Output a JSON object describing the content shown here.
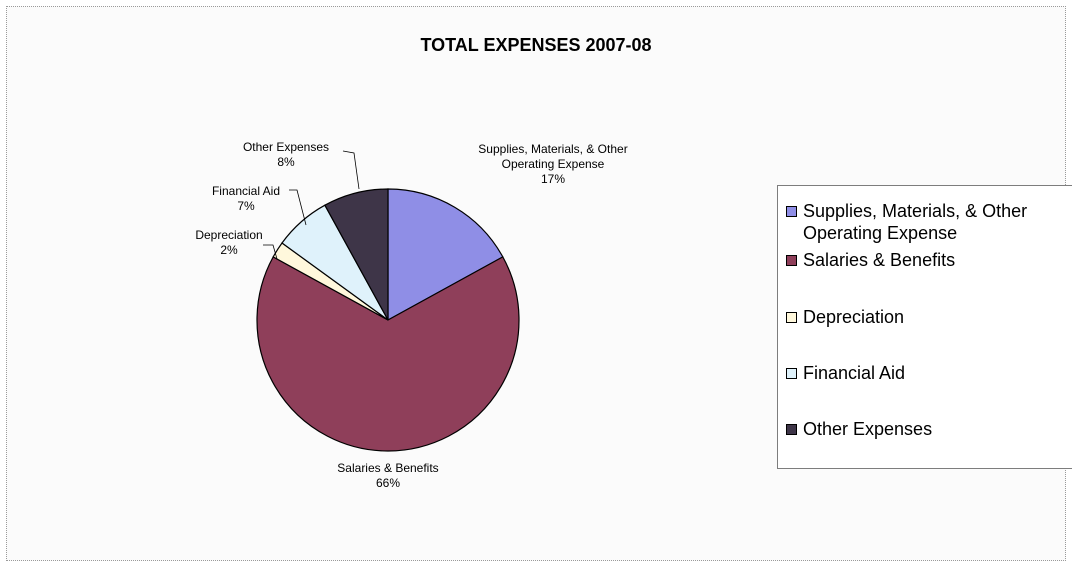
{
  "chart_data": {
    "type": "pie",
    "title": "TOTAL EXPENSES 2007-08",
    "slices": [
      {
        "label": "Supplies, Materials, & Other Operating Expense",
        "label_lines": [
          "Supplies, Materials, & Other",
          "Operating Expense"
        ],
        "value": 17,
        "value_label": "17%",
        "color": "#8f8ee6"
      },
      {
        "label": "Salaries & Benefits",
        "label_lines": [
          "Salaries & Benefits"
        ],
        "value": 66,
        "value_label": "66%",
        "color": "#8f3f5a"
      },
      {
        "label": "Depreciation",
        "label_lines": [
          "Depreciation"
        ],
        "value": 2,
        "value_label": "2%",
        "color": "#fff8dc"
      },
      {
        "label": "Financial Aid",
        "label_lines": [
          "Financial Aid"
        ],
        "value": 7,
        "value_label": "7%",
        "color": "#dff2fb"
      },
      {
        "label": "Other Expenses",
        "label_lines": [
          "Other Expenses"
        ],
        "value": 8,
        "value_label": "8%",
        "color": "#3e3548"
      }
    ],
    "legend": {
      "position": "right",
      "items": [
        {
          "label_lines": [
            "Supplies, Materials, & Other",
            "Operating Expense"
          ],
          "color": "#8f8ee6"
        },
        {
          "label_lines": [
            "Salaries & Benefits"
          ],
          "color": "#8f3f5a"
        },
        {
          "label_lines": [
            "Depreciation"
          ],
          "color": "#fff8dc"
        },
        {
          "label_lines": [
            "Financial Aid"
          ],
          "color": "#dff2fb"
        },
        {
          "label_lines": [
            "Other Expenses"
          ],
          "color": "#3e3548"
        }
      ]
    }
  }
}
